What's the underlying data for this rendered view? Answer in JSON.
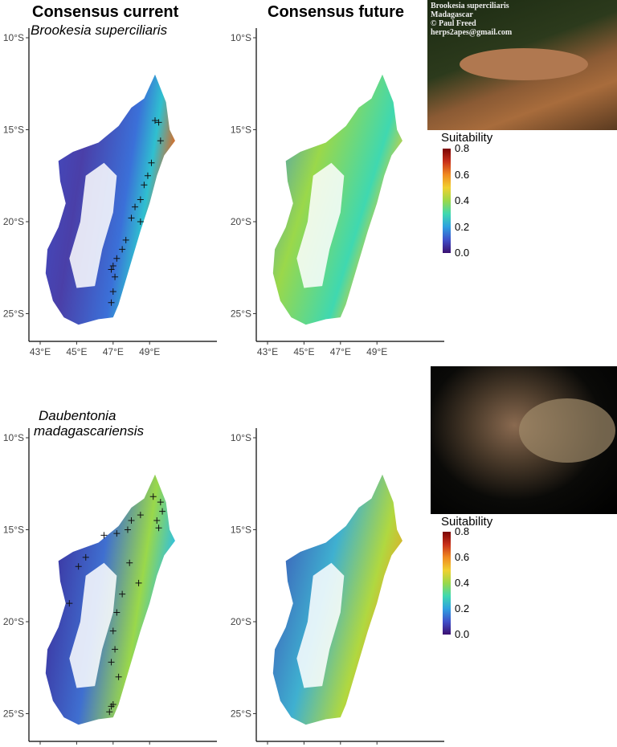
{
  "titles": {
    "current": "Consensus current",
    "future": "Consensus future"
  },
  "species": [
    {
      "name": "Brookesia superciliaris",
      "photo_caption": [
        "Brookesia superciliaris",
        "Madagascar",
        "© Paul Freed",
        "herps2apes@gmail.com"
      ]
    },
    {
      "name_lines": [
        "Daubentonia",
        "madagascariensis"
      ]
    }
  ],
  "legend": {
    "title": "Suitability",
    "labels": [
      "0.8",
      "0.6",
      "0.4",
      "0.2",
      "0.0"
    ]
  },
  "axes": {
    "y_ticks": [
      "10°S",
      "15°S",
      "20°S",
      "25°S"
    ],
    "x_ticks": [
      "43°E",
      "45°E",
      "47°E",
      "49°E"
    ]
  },
  "colors": {
    "low": "#3b0f70",
    "mid": "#3fd8b0",
    "high": "#7a0403"
  },
  "chart_data": {
    "type": "map",
    "panels": [
      "Brookesia current",
      "Brookesia future",
      "Daubentonia current",
      "Daubentonia future"
    ],
    "lat_range": [
      -26,
      -9.5
    ],
    "lon_range": [
      42.5,
      51
    ],
    "occurrences": [
      {
        "species": "Brookesia superciliaris",
        "points": [
          [
            49.3,
            -14.5
          ],
          [
            49.5,
            -14.6
          ],
          [
            49.6,
            -15.6
          ],
          [
            49.1,
            -16.8
          ],
          [
            48.9,
            -17.5
          ],
          [
            48.7,
            -18.0
          ],
          [
            48.5,
            -18.8
          ],
          [
            48.2,
            -19.2
          ],
          [
            48.0,
            -19.8
          ],
          [
            48.5,
            -20.0
          ],
          [
            47.7,
            -21.0
          ],
          [
            47.5,
            -21.5
          ],
          [
            47.2,
            -22.0
          ],
          [
            47.0,
            -22.4
          ],
          [
            46.9,
            -22.6
          ],
          [
            47.1,
            -23.0
          ],
          [
            47.0,
            -23.8
          ],
          [
            46.9,
            -24.4
          ]
        ]
      },
      {
        "species": "Daubentonia madagascariensis",
        "points": [
          [
            49.2,
            -13.2
          ],
          [
            49.6,
            -13.5
          ],
          [
            49.7,
            -14.0
          ],
          [
            49.4,
            -14.5
          ],
          [
            49.5,
            -14.9
          ],
          [
            48.5,
            -14.2
          ],
          [
            48.0,
            -14.5
          ],
          [
            47.8,
            -15.0
          ],
          [
            47.2,
            -15.2
          ],
          [
            46.5,
            -15.3
          ],
          [
            45.5,
            -16.5
          ],
          [
            45.1,
            -17.0
          ],
          [
            44.6,
            -19.0
          ],
          [
            47.9,
            -16.8
          ],
          [
            48.4,
            -17.9
          ],
          [
            47.5,
            -18.5
          ],
          [
            47.2,
            -19.5
          ],
          [
            47.0,
            -20.5
          ],
          [
            47.1,
            -21.5
          ],
          [
            46.9,
            -22.2
          ],
          [
            47.3,
            -23.0
          ],
          [
            46.9,
            -24.6
          ],
          [
            46.8,
            -24.9
          ],
          [
            47.0,
            -24.5
          ]
        ]
      }
    ]
  }
}
